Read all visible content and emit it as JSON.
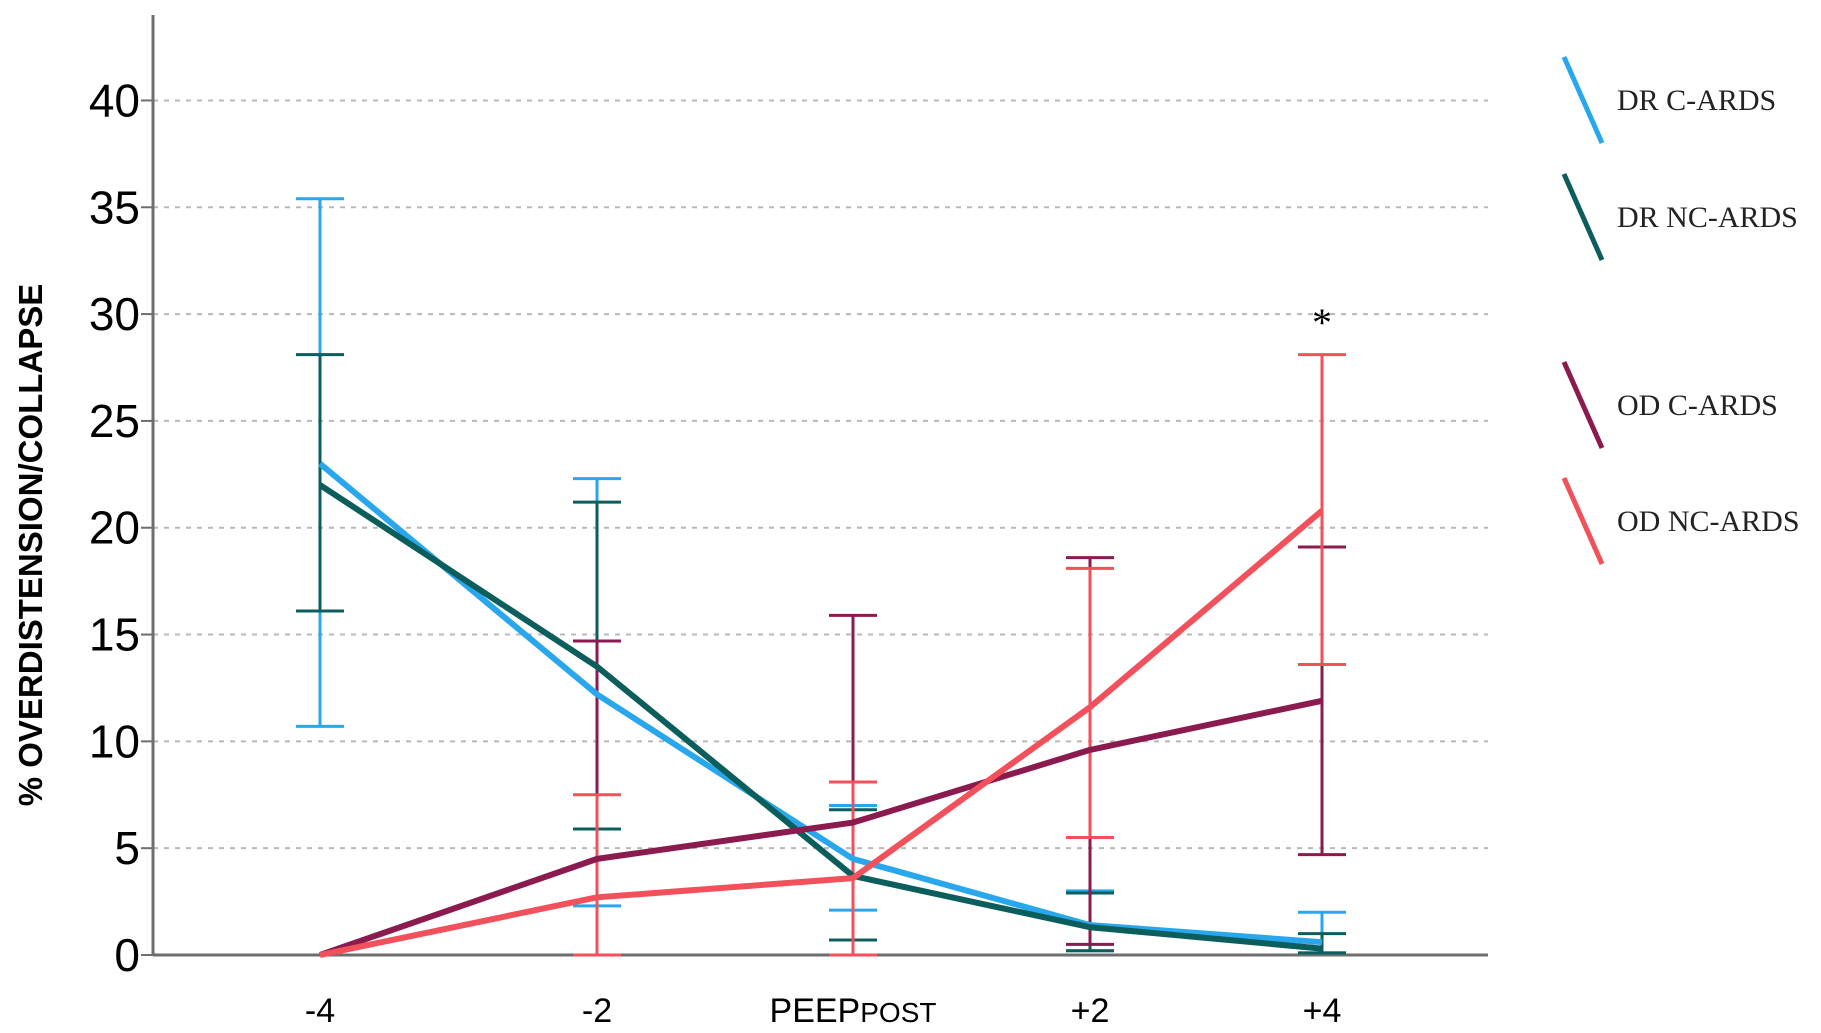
{
  "chart_data": {
    "type": "line",
    "title": "",
    "xlabel": "",
    "ylabel": "% OVERDISTENSION/COLLAPSE",
    "categories": [
      {
        "main": "-4",
        "sub": ""
      },
      {
        "main": "-2",
        "sub": ""
      },
      {
        "main": "PEEP",
        "sub": "POST"
      },
      {
        "main": "+2",
        "sub": ""
      },
      {
        "main": "+4",
        "sub": ""
      }
    ],
    "ylim": [
      0,
      44
    ],
    "yticks": [
      0,
      5,
      10,
      15,
      20,
      25,
      30,
      35,
      40
    ],
    "grid": "horizontal-dashed",
    "legend_position": "right",
    "series": [
      {
        "name": "DR C-ARDS",
        "color": "#29a7ec",
        "values": [
          23,
          12.2,
          4.5,
          1.4,
          0.6
        ],
        "err_low": [
          10.7,
          2.3,
          2.1,
          0.2,
          0.1
        ],
        "err_high": [
          35.4,
          22.3,
          7.0,
          3.0,
          2.0
        ]
      },
      {
        "name": "DR NC-ARDS",
        "color": "#0c5e5c",
        "values": [
          22,
          13.5,
          3.7,
          1.3,
          0.3
        ],
        "err_low": [
          16.1,
          5.9,
          0.7,
          0.2,
          0.1
        ],
        "err_high": [
          28.1,
          21.2,
          6.8,
          2.9,
          1.0
        ]
      },
      {
        "name": "OD C-ARDS",
        "color": "#8b1a4f",
        "values": [
          0,
          4.5,
          6.2,
          9.6,
          11.9
        ],
        "err_low": [
          0,
          0,
          0,
          0.5,
          4.7
        ],
        "err_high": [
          0,
          14.7,
          15.9,
          18.6,
          19.1
        ]
      },
      {
        "name": "OD NC-ARDS",
        "color": "#f2505b",
        "values": [
          0,
          2.7,
          3.6,
          11.6,
          20.8
        ],
        "err_low": [
          0,
          0,
          0,
          5.5,
          13.6
        ],
        "err_high": [
          0,
          7.5,
          8.1,
          18.1,
          28.1
        ]
      }
    ],
    "annotations": [
      {
        "text": "*",
        "category_index": 4,
        "y": 30
      }
    ]
  }
}
